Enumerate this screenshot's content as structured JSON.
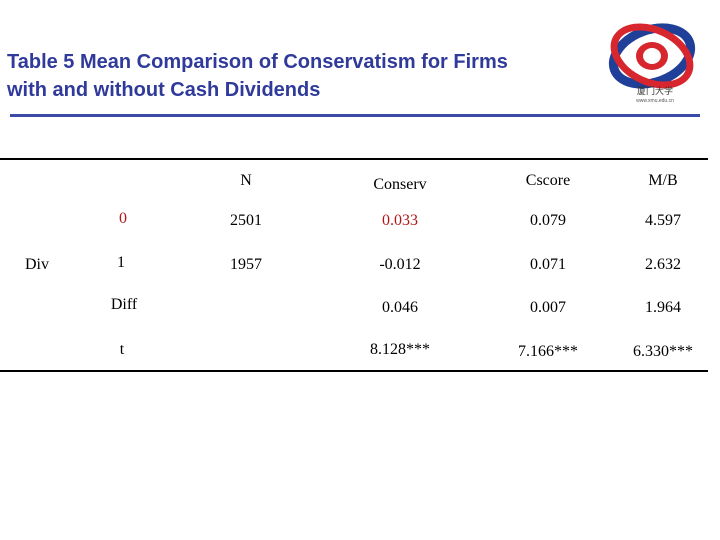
{
  "title": {
    "line1": "Table 5  Mean Comparison of Conservatism for Firms",
    "line2": "with and without Cash Dividends"
  },
  "logo": {
    "cn_text": "厦门大学",
    "sub_text": "www.xmu.edu.cn",
    "colors": {
      "red": "#d8262e",
      "blue": "#1f3f99",
      "white": "#ffffff"
    }
  },
  "table": {
    "columns": [
      "N",
      "Conserv",
      "Cscore",
      "M/B"
    ],
    "group_label": "Div",
    "rows": [
      {
        "label": "0",
        "N": "2501",
        "Conserv": "0.033",
        "Cscore": "0.079",
        "MB": "4.597"
      },
      {
        "label": "1",
        "N": "1957",
        "Conserv": "-0.012",
        "Cscore": "0.071",
        "MB": "2.632"
      },
      {
        "label": "Diff",
        "N": "",
        "Conserv": "0.046",
        "Cscore": "0.007",
        "MB": "1.964"
      },
      {
        "label": "t",
        "N": "",
        "Conserv": "8.128***",
        "Cscore": "7.166***",
        "MB": "6.330***"
      }
    ],
    "highlight_color": "#b01818"
  }
}
